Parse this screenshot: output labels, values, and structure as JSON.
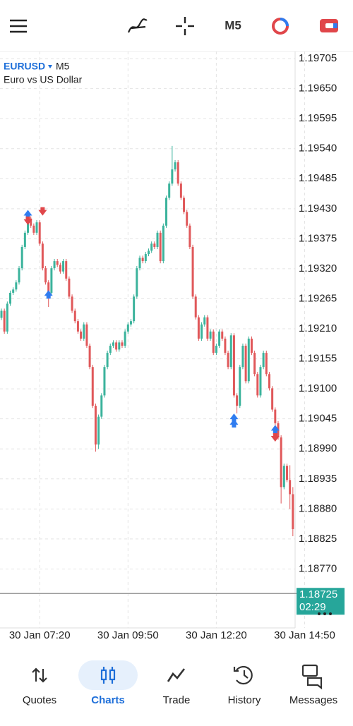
{
  "symbol": "EURUSD",
  "timeframe": "M5",
  "description": "Euro vs US Dollar",
  "nav": [
    "Quotes",
    "Charts",
    "Trade",
    "History",
    "Messages"
  ],
  "chart_data": {
    "type": "candlestick",
    "up_color": "#3bb39c",
    "down_color": "#e0585a",
    "grid": true,
    "ylim": [
      1.18662,
      1.19718
    ],
    "yticks": [
      1.19705,
      {
        "value": 1.1965,
        "label": "1.19650"
      },
      1.19595,
      {
        "value": 1.1954,
        "label": "1.19540"
      },
      1.19485,
      {
        "value": 1.1943,
        "label": "1.19430"
      },
      1.19375,
      {
        "value": 1.1932,
        "label": "1.19320"
      },
      1.19265,
      {
        "value": 1.1921,
        "label": "1.19210"
      },
      1.19155,
      {
        "value": 1.191,
        "label": "1.19100"
      },
      1.19045,
      {
        "value": 1.1899,
        "label": "1.18990"
      },
      1.18935,
      {
        "value": 1.1888,
        "label": "1.18880"
      },
      1.18825,
      {
        "value": 1.1877,
        "label": "1.18770"
      }
    ],
    "xticks": [
      "30 Jan 07:20",
      "30 Jan 09:50",
      "30 Jan 12:20",
      "30 Jan 14:50"
    ],
    "current_price": 1.18725,
    "current_color": "#26a69a",
    "countdown": "02:29",
    "x": [
      "30 Jan 06:15",
      "30 Jan 06:20",
      "30 Jan 06:25",
      "30 Jan 06:30",
      "30 Jan 06:35",
      "30 Jan 06:40",
      "30 Jan 06:45",
      "30 Jan 06:50",
      "30 Jan 06:55",
      "30 Jan 07:00",
      "30 Jan 07:05",
      "30 Jan 07:10",
      "30 Jan 07:15",
      "30 Jan 07:20",
      "30 Jan 07:25",
      "30 Jan 07:30",
      "30 Jan 07:35",
      "30 Jan 07:40",
      "30 Jan 07:45",
      "30 Jan 07:50",
      "30 Jan 07:55",
      "30 Jan 08:00",
      "30 Jan 08:05",
      "30 Jan 08:10",
      "30 Jan 08:15",
      "30 Jan 08:20",
      "30 Jan 08:25",
      "30 Jan 08:30",
      "30 Jan 08:35",
      "30 Jan 08:40",
      "30 Jan 08:45",
      "30 Jan 08:50",
      "30 Jan 08:55",
      "30 Jan 09:00",
      "30 Jan 09:05",
      "30 Jan 09:10",
      "30 Jan 09:15",
      "30 Jan 09:20",
      "30 Jan 09:25",
      "30 Jan 09:30",
      "30 Jan 09:35",
      "30 Jan 09:40",
      "30 Jan 09:45",
      "30 Jan 09:50",
      "30 Jan 09:55",
      "30 Jan 10:00",
      "30 Jan 10:05",
      "30 Jan 10:10",
      "30 Jan 10:15",
      "30 Jan 10:20",
      "30 Jan 10:25",
      "30 Jan 10:30",
      "30 Jan 10:35",
      "30 Jan 10:40",
      "30 Jan 10:45",
      "30 Jan 10:50",
      "30 Jan 10:55",
      "30 Jan 11:00",
      "30 Jan 11:05",
      "30 Jan 11:10",
      "30 Jan 11:15",
      "30 Jan 11:20",
      "30 Jan 11:25",
      "30 Jan 11:30",
      "30 Jan 11:35",
      "30 Jan 11:40",
      "30 Jan 11:45",
      "30 Jan 11:50",
      "30 Jan 11:55",
      "30 Jan 12:00",
      "30 Jan 12:05",
      "30 Jan 12:10",
      "30 Jan 12:15",
      "30 Jan 12:20",
      "30 Jan 12:25",
      "30 Jan 12:30",
      "30 Jan 12:35",
      "30 Jan 12:40",
      "30 Jan 12:45",
      "30 Jan 12:50",
      "30 Jan 12:55",
      "30 Jan 13:00",
      "30 Jan 13:05",
      "30 Jan 13:10",
      "30 Jan 13:15",
      "30 Jan 13:20",
      "30 Jan 13:25",
      "30 Jan 13:30",
      "30 Jan 13:35",
      "30 Jan 13:40",
      "30 Jan 13:45",
      "30 Jan 13:50",
      "30 Jan 13:55",
      "30 Jan 14:00",
      "30 Jan 14:05",
      "30 Jan 14:10",
      "30 Jan 14:15",
      "30 Jan 14:20",
      "30 Jan 14:25",
      "30 Jan 14:30"
    ],
    "candles": [
      [
        1.1923,
        1.19247,
        1.19226,
        1.19243
      ],
      [
        1.19243,
        1.19247,
        1.19201,
        1.19205
      ],
      [
        1.19205,
        1.1926,
        1.19201,
        1.19256
      ],
      [
        1.19256,
        1.1928,
        1.19252,
        1.19276
      ],
      [
        1.19276,
        1.19286,
        1.19272,
        1.19282
      ],
      [
        1.19282,
        1.19299,
        1.19278,
        1.19295
      ],
      [
        1.19295,
        1.19325,
        1.19291,
        1.19321
      ],
      [
        1.19321,
        1.19364,
        1.19317,
        1.1936
      ],
      [
        1.1936,
        1.1939,
        1.19356,
        1.19386
      ],
      [
        1.19386,
        1.19416,
        1.19382,
        1.19412
      ],
      [
        1.19412,
        1.19416,
        1.19395,
        1.19399
      ],
      [
        1.19399,
        1.19403,
        1.19382,
        1.19386
      ],
      [
        1.19386,
        1.19409,
        1.19382,
        1.19405
      ],
      [
        1.19405,
        1.19409,
        1.19362,
        1.19366
      ],
      [
        1.19366,
        1.1937,
        1.19317,
        1.19321
      ],
      [
        1.19321,
        1.19325,
        1.19291,
        1.19295
      ],
      [
        1.19295,
        1.19299,
        1.1925,
        1.19276
      ],
      [
        1.19276,
        1.19325,
        1.19272,
        1.19321
      ],
      [
        1.19321,
        1.19338,
        1.19317,
        1.19334
      ],
      [
        1.19334,
        1.19338,
        1.19323,
        1.19327
      ],
      [
        1.19327,
        1.19331,
        1.19311,
        1.19315
      ],
      [
        1.19315,
        1.19338,
        1.19311,
        1.19334
      ],
      [
        1.19334,
        1.19338,
        1.19298,
        1.19302
      ],
      [
        1.19302,
        1.19306,
        1.19265,
        1.19269
      ],
      [
        1.19269,
        1.19273,
        1.19239,
        1.19243
      ],
      [
        1.19243,
        1.19247,
        1.1922,
        1.19224
      ],
      [
        1.19224,
        1.19228,
        1.19201,
        1.19205
      ],
      [
        1.19205,
        1.19209,
        1.19188,
        1.19192
      ],
      [
        1.19192,
        1.19222,
        1.19188,
        1.19218
      ],
      [
        1.19218,
        1.19222,
        1.19175,
        1.19179
      ],
      [
        1.19179,
        1.19183,
        1.19136,
        1.1914
      ],
      [
        1.1914,
        1.19144,
        1.19065,
        1.19069
      ],
      [
        1.19069,
        1.19073,
        1.18985,
        1.18998
      ],
      [
        1.18998,
        1.19053,
        1.1899,
        1.19049
      ],
      [
        1.19049,
        1.19092,
        1.19045,
        1.19088
      ],
      [
        1.19088,
        1.19144,
        1.19084,
        1.1914
      ],
      [
        1.1914,
        1.1917,
        1.19136,
        1.19166
      ],
      [
        1.19166,
        1.19183,
        1.19162,
        1.19179
      ],
      [
        1.19179,
        1.19189,
        1.19175,
        1.19185
      ],
      [
        1.19185,
        1.19189,
        1.19168,
        1.19172
      ],
      [
        1.19172,
        1.19189,
        1.19168,
        1.19185
      ],
      [
        1.19185,
        1.19189,
        1.19175,
        1.19179
      ],
      [
        1.19179,
        1.19209,
        1.19175,
        1.19205
      ],
      [
        1.19205,
        1.19222,
        1.19201,
        1.19218
      ],
      [
        1.19218,
        1.19228,
        1.19214,
        1.19224
      ],
      [
        1.19224,
        1.19273,
        1.1922,
        1.19269
      ],
      [
        1.19269,
        1.19325,
        1.19265,
        1.19321
      ],
      [
        1.19321,
        1.19344,
        1.19317,
        1.1934
      ],
      [
        1.1934,
        1.19344,
        1.1933,
        1.19334
      ],
      [
        1.19334,
        1.19351,
        1.1933,
        1.19347
      ],
      [
        1.19347,
        1.19357,
        1.19343,
        1.19353
      ],
      [
        1.19353,
        1.1937,
        1.19349,
        1.19366
      ],
      [
        1.19366,
        1.1937,
        1.19356,
        1.1936
      ],
      [
        1.1936,
        1.1939,
        1.19356,
        1.19386
      ],
      [
        1.19386,
        1.1939,
        1.1933,
        1.19334
      ],
      [
        1.19334,
        1.19403,
        1.1933,
        1.19399
      ],
      [
        1.19399,
        1.19454,
        1.19395,
        1.1945
      ],
      [
        1.1945,
        1.1948,
        1.19446,
        1.19476
      ],
      [
        1.19476,
        1.19545,
        1.19472,
        1.19502
      ],
      [
        1.19502,
        1.19519,
        1.19498,
        1.19515
      ],
      [
        1.19515,
        1.19519,
        1.19472,
        1.19476
      ],
      [
        1.19476,
        1.1948,
        1.19446,
        1.1945
      ],
      [
        1.1945,
        1.19454,
        1.1942,
        1.19424
      ],
      [
        1.19424,
        1.19428,
        1.19395,
        1.19399
      ],
      [
        1.19399,
        1.19403,
        1.19356,
        1.1936
      ],
      [
        1.1936,
        1.19364,
        1.19265,
        1.19269
      ],
      [
        1.19269,
        1.19273,
        1.19227,
        1.19231
      ],
      [
        1.19231,
        1.19235,
        1.19188,
        1.19192
      ],
      [
        1.19192,
        1.19222,
        1.19188,
        1.19218
      ],
      [
        1.19218,
        1.19235,
        1.19214,
        1.19231
      ],
      [
        1.19231,
        1.19235,
        1.19188,
        1.19192
      ],
      [
        1.19192,
        1.19209,
        1.19188,
        1.19205
      ],
      [
        1.19205,
        1.19209,
        1.19162,
        1.19166
      ],
      [
        1.19166,
        1.19183,
        1.19162,
        1.19179
      ],
      [
        1.19179,
        1.19209,
        1.19175,
        1.19205
      ],
      [
        1.19205,
        1.19209,
        1.19188,
        1.19192
      ],
      [
        1.19192,
        1.19196,
        1.19162,
        1.19166
      ],
      [
        1.19166,
        1.1917,
        1.19136,
        1.1914
      ],
      [
        1.1914,
        1.19202,
        1.19136,
        1.19198
      ],
      [
        1.19198,
        1.19202,
        1.19084,
        1.19088
      ],
      [
        1.19088,
        1.19092,
        1.19055,
        1.19069
      ],
      [
        1.19069,
        1.19144,
        1.19065,
        1.1914
      ],
      [
        1.1914,
        1.19183,
        1.19136,
        1.19179
      ],
      [
        1.19179,
        1.19183,
        1.1911,
        1.19114
      ],
      [
        1.19114,
        1.19196,
        1.1911,
        1.19192
      ],
      [
        1.19192,
        1.19196,
        1.19162,
        1.19166
      ],
      [
        1.19166,
        1.1917,
        1.19123,
        1.19127
      ],
      [
        1.19127,
        1.19131,
        1.19084,
        1.19088
      ],
      [
        1.19088,
        1.19144,
        1.19084,
        1.1914
      ],
      [
        1.1914,
        1.1917,
        1.19136,
        1.19166
      ],
      [
        1.19166,
        1.1917,
        1.19123,
        1.19127
      ],
      [
        1.19127,
        1.19131,
        1.19097,
        1.19101
      ],
      [
        1.19101,
        1.19105,
        1.19058,
        1.19062
      ],
      [
        1.19062,
        1.19066,
        1.19033,
        1.19037
      ],
      [
        1.19037,
        1.19041,
        1.19007,
        1.19011
      ],
      [
        1.19011,
        1.19015,
        1.1889,
        1.1892
      ],
      [
        1.1892,
        1.18963,
        1.18916,
        1.18959
      ],
      [
        1.18959,
        1.18963,
        1.18929,
        1.18933
      ],
      [
        1.18933,
        1.1896,
        1.1888,
        1.18907
      ],
      [
        1.18907,
        1.1892,
        1.1883,
        1.18843
      ]
    ],
    "markers": [
      {
        "time": "30 Jan 07:00",
        "price": 1.1942,
        "dir": "up",
        "color": "#2f7cf0"
      },
      {
        "time": "30 Jan 07:00",
        "price": 1.19408,
        "dir": "down",
        "color": "#e0464a"
      },
      {
        "time": "30 Jan 07:25",
        "price": 1.19425,
        "dir": "down",
        "color": "#e0464a"
      },
      {
        "time": "30 Jan 07:35",
        "price": 1.19273,
        "dir": "up",
        "color": "#2f7cf0"
      },
      {
        "time": "30 Jan 12:50",
        "price": 1.19047,
        "dir": "up",
        "color": "#2f7cf0"
      },
      {
        "time": "30 Jan 12:50",
        "price": 1.19037,
        "dir": "up",
        "color": "#2f7cf0"
      },
      {
        "time": "30 Jan 14:00",
        "price": 1.19026,
        "dir": "up",
        "color": "#2f7cf0"
      },
      {
        "time": "30 Jan 14:00",
        "price": 1.19011,
        "dir": "down",
        "color": "#e0464a"
      }
    ]
  }
}
